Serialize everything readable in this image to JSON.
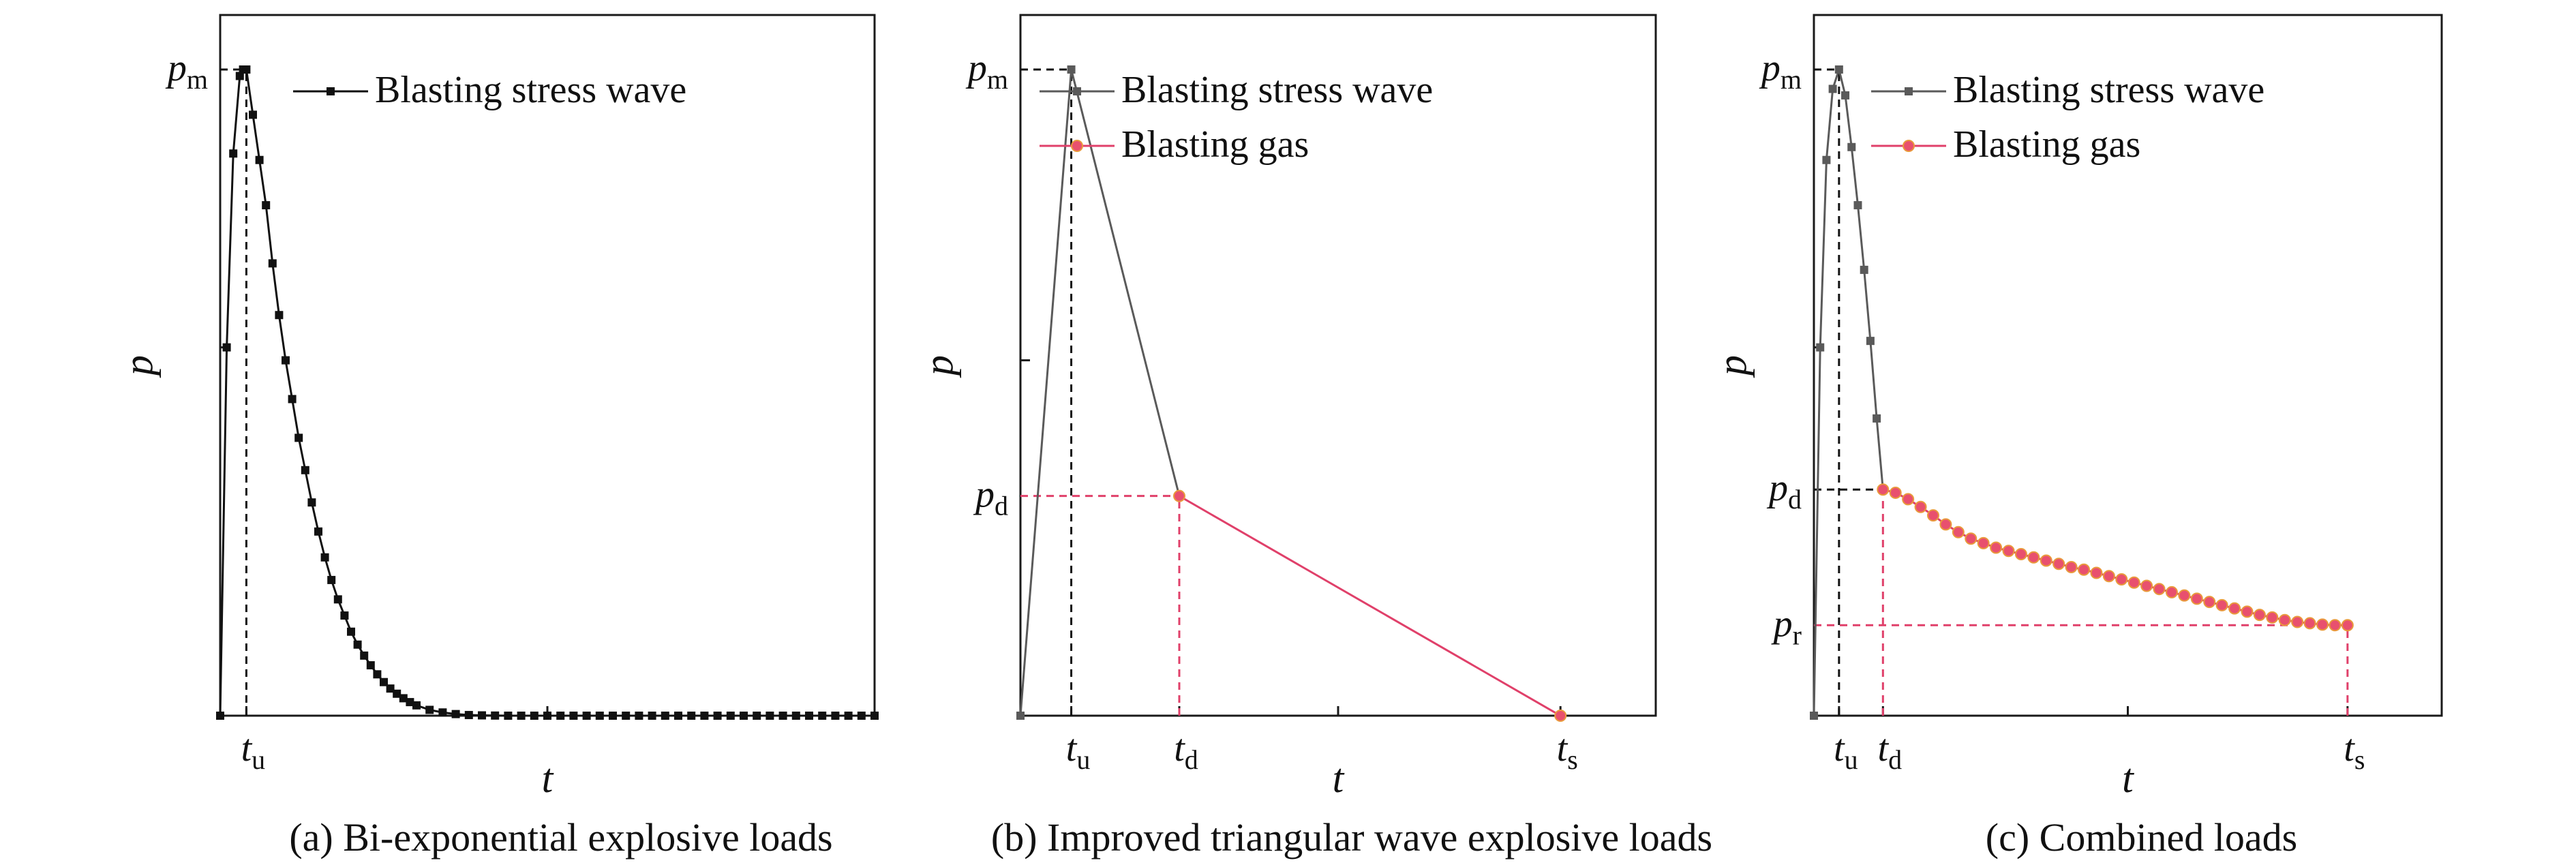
{
  "colors": {
    "axis": "#1a1a1a",
    "bi_exp_series": "#111111",
    "stress_wave_series": "#5a5a5a",
    "gas_series": "#e0406a",
    "gas_marker_fill": "#e8506e",
    "gas_marker_edge": "#e99a3c",
    "guide_black": "#111111",
    "guide_red": "#e0406a"
  },
  "chart_data": [
    {
      "type": "line",
      "caption": "(a) Bi-exponential explosive loads",
      "ylabel": "p",
      "xlabel": "t",
      "xlim": [
        0,
        100
      ],
      "ylim": [
        0,
        100
      ],
      "x_tick_values": [
        50
      ],
      "y_tick_values": [
        57
      ],
      "key_labels": {
        "y": [
          {
            "base": "p",
            "sub": "m",
            "value": 100
          }
        ],
        "x": [
          {
            "base": "t",
            "sub": "u",
            "value": 4
          }
        ]
      },
      "legend": {
        "position": "top-right",
        "entries": [
          "Blasting stress wave"
        ]
      },
      "series": [
        {
          "name": "Blasting stress wave",
          "marker": "square",
          "markers_every": 1,
          "x": [
            0,
            1,
            2,
            3,
            3.5,
            4,
            5,
            6,
            7,
            8,
            9,
            10,
            11,
            12,
            13,
            14,
            15,
            16,
            17,
            18,
            19,
            20,
            21,
            22,
            23,
            24,
            25,
            26,
            27,
            28,
            29,
            30,
            32,
            34,
            36,
            38,
            40,
            42,
            44,
            46,
            48,
            50,
            52,
            54,
            56,
            58,
            60,
            62,
            64,
            66,
            68,
            70,
            72,
            74,
            76,
            78,
            80,
            82,
            84,
            86,
            88,
            90,
            92,
            94,
            96,
            98,
            100
          ],
          "y": [
            0,
            57,
            87,
            99,
            100,
            100,
            93,
            86,
            79,
            70,
            62,
            55,
            49,
            43,
            38,
            33,
            28.5,
            24.5,
            21,
            18,
            15.5,
            13,
            11,
            9.3,
            7.8,
            6.4,
            5.2,
            4.2,
            3.4,
            2.7,
            2.1,
            1.6,
            0.9,
            0.5,
            0.25,
            0.1,
            0.05,
            0.02,
            0,
            0,
            0,
            0,
            0,
            0,
            0,
            0,
            0,
            0,
            0,
            0,
            0,
            0,
            0,
            0,
            0,
            0,
            0,
            0,
            0,
            0,
            0,
            0,
            0,
            0,
            0,
            0,
            0
          ]
        }
      ],
      "guides": [
        {
          "from": [
            4,
            0
          ],
          "to": [
            4,
            100
          ],
          "style": "black"
        },
        {
          "from": [
            0,
            100
          ],
          "to": [
            4,
            100
          ],
          "style": "black"
        }
      ]
    },
    {
      "type": "line",
      "caption": "(b) Improved triangular wave explosive loads",
      "ylabel": "p",
      "xlabel": "t",
      "xlim": [
        0,
        100
      ],
      "ylim": [
        0,
        100
      ],
      "x_tick_values": [
        50
      ],
      "y_tick_values": [
        55
      ],
      "key_labels": {
        "y": [
          {
            "base": "p",
            "sub": "m",
            "value": 100
          },
          {
            "base": "p",
            "sub": "d",
            "value": 34
          }
        ],
        "x": [
          {
            "base": "t",
            "sub": "u",
            "value": 8
          },
          {
            "base": "t",
            "sub": "d",
            "value": 25
          },
          {
            "base": "t",
            "sub": "s",
            "value": 85
          }
        ]
      },
      "legend": {
        "position": "top-right",
        "entries": [
          "Blasting stress wave",
          "Blasting gas"
        ]
      },
      "series": [
        {
          "name": "Blasting stress wave",
          "marker": "square",
          "x": [
            0,
            8,
            25
          ],
          "y": [
            0,
            100,
            34
          ]
        },
        {
          "name": "Blasting gas",
          "marker": "circle",
          "x": [
            25,
            85
          ],
          "y": [
            34,
            0
          ]
        }
      ],
      "guides": [
        {
          "from": [
            8,
            0
          ],
          "to": [
            8,
            100
          ],
          "style": "black"
        },
        {
          "from": [
            0,
            100
          ],
          "to": [
            8,
            100
          ],
          "style": "black"
        },
        {
          "from": [
            0,
            34
          ],
          "to": [
            25,
            34
          ],
          "style": "red"
        },
        {
          "from": [
            25,
            0
          ],
          "to": [
            25,
            34
          ],
          "style": "red"
        }
      ]
    },
    {
      "type": "line",
      "caption": "(c) Combined loads",
      "ylabel": "p",
      "xlabel": "t",
      "xlim": [
        0,
        100
      ],
      "ylim": [
        0,
        100
      ],
      "x_tick_values": [
        50
      ],
      "y_tick_values": [
        57
      ],
      "key_labels": {
        "y": [
          {
            "base": "p",
            "sub": "m",
            "value": 100
          },
          {
            "base": "p",
            "sub": "d",
            "value": 35
          },
          {
            "base": "p",
            "sub": "r",
            "value": 14
          }
        ],
        "x": [
          {
            "base": "t",
            "sub": "u",
            "value": 4
          },
          {
            "base": "t",
            "sub": "d",
            "value": 11
          },
          {
            "base": "t",
            "sub": "s",
            "value": 85
          }
        ]
      },
      "legend": {
        "position": "top-right",
        "entries": [
          "Blasting stress wave",
          "Blasting gas"
        ]
      },
      "series": [
        {
          "name": "Blasting stress wave",
          "marker": "square",
          "x": [
            0,
            1,
            2,
            3,
            4,
            5,
            6,
            7,
            8,
            9,
            10,
            11
          ],
          "y": [
            0,
            57,
            86,
            97,
            100,
            96,
            88,
            79,
            69,
            58,
            46,
            35
          ]
        },
        {
          "name": "Blasting gas",
          "marker": "circle",
          "x": [
            11,
            13,
            15,
            17,
            19,
            21,
            23,
            25,
            27,
            29,
            31,
            33,
            35,
            37,
            39,
            41,
            43,
            45,
            47,
            49,
            51,
            53,
            55,
            57,
            59,
            61,
            63,
            65,
            67,
            69,
            71,
            73,
            75,
            77,
            79,
            81,
            83,
            85
          ],
          "y": [
            35,
            34.5,
            33.5,
            32.3,
            31,
            29.6,
            28.4,
            27.4,
            26.7,
            26,
            25.5,
            25,
            24.5,
            24,
            23.5,
            23,
            22.6,
            22.1,
            21.6,
            21.1,
            20.6,
            20.1,
            19.6,
            19.1,
            18.6,
            18.1,
            17.6,
            17.1,
            16.6,
            16.1,
            15.6,
            15.2,
            14.8,
            14.5,
            14.3,
            14.1,
            14,
            14
          ]
        }
      ],
      "guides": [
        {
          "from": [
            4,
            0
          ],
          "to": [
            4,
            100
          ],
          "style": "black"
        },
        {
          "from": [
            0,
            100
          ],
          "to": [
            4,
            100
          ],
          "style": "black"
        },
        {
          "from": [
            0,
            35
          ],
          "to": [
            11,
            35
          ],
          "style": "black"
        },
        {
          "from": [
            11,
            0
          ],
          "to": [
            11,
            35
          ],
          "style": "red"
        },
        {
          "from": [
            0,
            14
          ],
          "to": [
            85,
            14
          ],
          "style": "red"
        },
        {
          "from": [
            85,
            0
          ],
          "to": [
            85,
            14
          ],
          "style": "red"
        }
      ]
    }
  ]
}
